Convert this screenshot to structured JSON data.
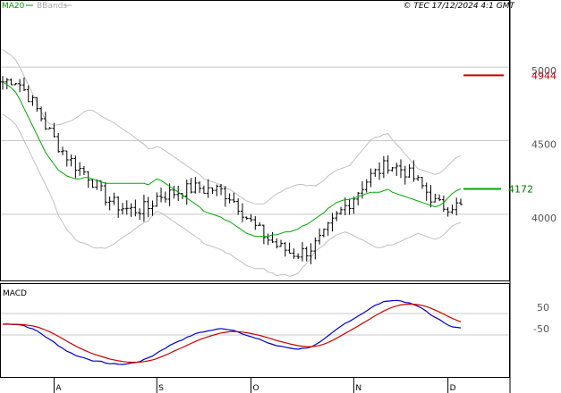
{
  "header": {
    "legend_ma": "MA20",
    "legend_bb": "BBands",
    "copyright": "© TEC 17/12/2024 4:1 GMT"
  },
  "colors": {
    "price": "#000000",
    "ma20": "#00aa00",
    "bbands": "#c0c0c0",
    "macd": "#0000cc",
    "signal": "#cc0000",
    "resistance": "#cc0000",
    "support": "#00aa00",
    "grid": "#c8c8c8"
  },
  "levels": {
    "resistance": {
      "label": "4944",
      "value": 4944
    },
    "support": {
      "label": "4172",
      "value": 4172
    }
  },
  "macd_panel": {
    "title": "MACD",
    "tick_labels": [
      "50",
      "-50"
    ]
  },
  "chart_data": {
    "type": "line",
    "price_ylim": [
      3550,
      5450
    ],
    "price_gridlines": [
      4000,
      4500,
      5000
    ],
    "price_tick_labels": [
      "4000",
      "4500",
      "5000"
    ],
    "x_tick_labels": [
      "A",
      "S",
      "O",
      "N",
      "D"
    ],
    "x_tick_index": [
      12,
      36,
      58,
      82,
      104
    ],
    "series": [
      {
        "name": "MA20",
        "values": [
          4900,
          4880,
          4860,
          4830,
          4780,
          4720,
          4660,
          4600,
          4540,
          4480,
          4420,
          4380,
          4340,
          4300,
          4280,
          4260,
          4250,
          4240,
          4240,
          4250,
          4250,
          4240,
          4230,
          4220,
          4210,
          4210,
          4210,
          4210,
          4210,
          4210,
          4210,
          4210,
          4210,
          4210,
          4200,
          4220,
          4240,
          4230,
          4210,
          4190,
          4170,
          4150,
          4130,
          4110,
          4090,
          4070,
          4050,
          4020,
          4010,
          4000,
          3990,
          3980,
          3960,
          3950,
          3930,
          3910,
          3890,
          3870,
          3860,
          3850,
          3850,
          3850,
          3850,
          3860,
          3860,
          3870,
          3880,
          3880,
          3890,
          3900,
          3920,
          3930,
          3950,
          3970,
          3990,
          4010,
          4040,
          4060,
          4080,
          4090,
          4100,
          4100,
          4110,
          4120,
          4130,
          4140,
          4150,
          4150,
          4150,
          4160,
          4170,
          4150,
          4140,
          4130,
          4120,
          4110,
          4100,
          4090,
          4080,
          4070,
          4060,
          4050,
          4060,
          4080,
          4110,
          4140,
          4160,
          4172
        ],
        "labels_in_image": []
      }
    ]
  }
}
